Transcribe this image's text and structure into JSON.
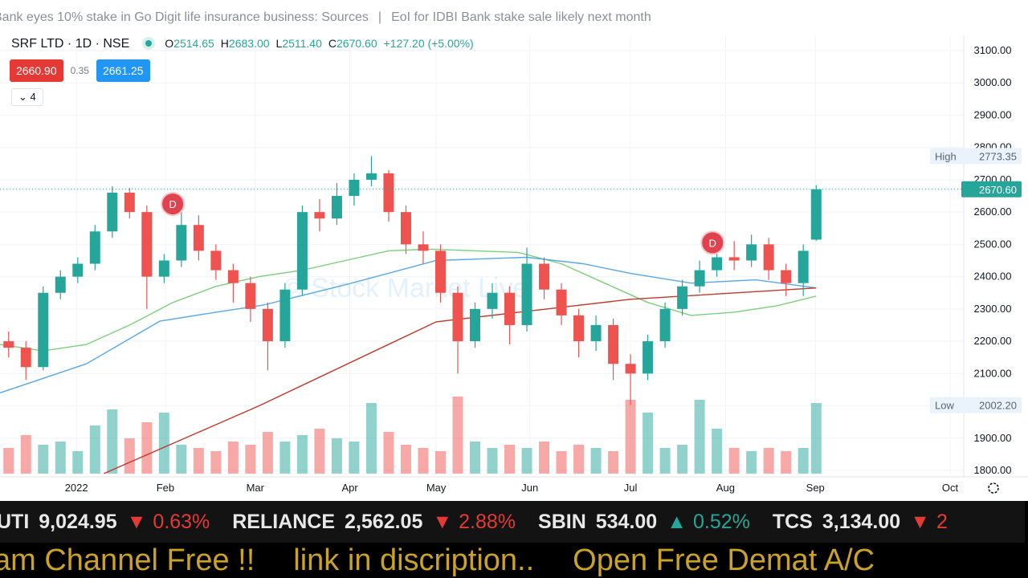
{
  "news": [
    "Bank eyes 10% stake in Go Digit life insurance business: Sources",
    "|",
    "EoI for IDBI Bank stake sale likely next month"
  ],
  "header": {
    "symbol": "SRF LTD · 1D · NSE",
    "ohlc": [
      [
        "O",
        "2514.65"
      ],
      [
        "H",
        "2683.00"
      ],
      [
        "L",
        "2511.40"
      ],
      [
        "C",
        "2670.60"
      ]
    ],
    "change": "+127.20 (+5.00%)",
    "bid": "2660.90",
    "spread": "0.35",
    "ask": "2661.25",
    "indicators": "4"
  },
  "chart_data": {
    "type": "candlestick",
    "watermark": "© Stock Market Live",
    "xlim": [
      0,
      220
    ],
    "xticks": [
      {
        "value": 17.7,
        "label": "2022"
      },
      {
        "value": 38.3,
        "label": "Feb"
      },
      {
        "value": 59.1,
        "label": "Mar"
      },
      {
        "value": 81,
        "label": "Apr"
      },
      {
        "value": 101,
        "label": "May"
      },
      {
        "value": 122.7,
        "label": "Jun"
      },
      {
        "value": 146,
        "label": "Jul"
      },
      {
        "value": 168,
        "label": "Aug"
      },
      {
        "value": 188.8,
        "label": "Sep"
      },
      {
        "value": 220,
        "label": "Oct"
      }
    ],
    "ylim": [
      1800,
      3100
    ],
    "yticks": [
      {
        "value": 1800,
        "label": "1800.00"
      },
      {
        "value": 1900,
        "label": "1900.00"
      },
      {
        "value": 2000,
        "label": "2000.00"
      },
      {
        "value": 2100,
        "label": "2100.00"
      },
      {
        "value": 2200,
        "label": "2200.00"
      },
      {
        "value": 2300,
        "label": "2300.00"
      },
      {
        "value": 2400,
        "label": "2400.00"
      },
      {
        "value": 2500,
        "label": "2500.00"
      },
      {
        "value": 2600,
        "label": "2600.00"
      },
      {
        "value": 2700,
        "label": "2700.00"
      },
      {
        "value": 2800,
        "label": "2800.00"
      },
      {
        "value": 2900,
        "label": "2900.00"
      },
      {
        "value": 3000,
        "label": "3000.00"
      },
      {
        "value": 3100,
        "label": "3100.00"
      }
    ],
    "up_color": "#26a69a",
    "down_color": "#ef5350",
    "candles": {
      "x": [
        2,
        6,
        10,
        14,
        18,
        22,
        26,
        30,
        34,
        38,
        42,
        46,
        50,
        54,
        58,
        62,
        66,
        70,
        74,
        78,
        82,
        86,
        90,
        94,
        98,
        102,
        106,
        110,
        114,
        118,
        122,
        126,
        130,
        134,
        138,
        142,
        146,
        150,
        154,
        158,
        162,
        166,
        170,
        174,
        178,
        182,
        186,
        189
      ],
      "open": [
        2200,
        2180,
        2120,
        2350,
        2400,
        2440,
        2540,
        2660,
        2600,
        2400,
        2450,
        2560,
        2480,
        2420,
        2380,
        2300,
        2200,
        2360,
        2600,
        2580,
        2650,
        2700,
        2720,
        2600,
        2500,
        2480,
        2350,
        2200,
        2300,
        2350,
        2250,
        2440,
        2360,
        2280,
        2200,
        2250,
        2130,
        2100,
        2200,
        2300,
        2370,
        2420,
        2460,
        2450,
        2500,
        2420,
        2380,
        2514.65
      ],
      "high": [
        2230,
        2200,
        2370,
        2420,
        2460,
        2560,
        2680,
        2675,
        2620,
        2470,
        2610,
        2590,
        2500,
        2440,
        2400,
        2320,
        2380,
        2620,
        2640,
        2690,
        2720,
        2773.35,
        2730,
        2620,
        2540,
        2500,
        2370,
        2320,
        2380,
        2370,
        2490,
        2460,
        2380,
        2300,
        2280,
        2270,
        2160,
        2220,
        2320,
        2390,
        2450,
        2490,
        2510,
        2530,
        2520,
        2440,
        2500,
        2683
      ],
      "low": [
        2150,
        2080,
        2110,
        2330,
        2380,
        2420,
        2520,
        2580,
        2300,
        2380,
        2430,
        2450,
        2390,
        2320,
        2260,
        2110,
        2180,
        2340,
        2540,
        2560,
        2620,
        2680,
        2570,
        2470,
        2440,
        2320,
        2100,
        2180,
        2270,
        2190,
        2230,
        2330,
        2250,
        2150,
        2170,
        2080,
        2002.2,
        2080,
        2180,
        2280,
        2350,
        2400,
        2420,
        2430,
        2390,
        2340,
        2340,
        2511.4
      ],
      "close": [
        2180,
        2120,
        2350,
        2400,
        2440,
        2540,
        2660,
        2600,
        2400,
        2450,
        2560,
        2480,
        2420,
        2380,
        2300,
        2200,
        2360,
        2600,
        2580,
        2650,
        2700,
        2720,
        2600,
        2500,
        2480,
        2350,
        2200,
        2300,
        2350,
        2250,
        2440,
        2360,
        2280,
        2200,
        2250,
        2130,
        2100,
        2200,
        2300,
        2370,
        2420,
        2460,
        2450,
        2500,
        2420,
        2380,
        2480,
        2670.6
      ],
      "volume": [
        0.8,
        1.2,
        0.9,
        1.0,
        0.7,
        1.5,
        2.0,
        1.1,
        1.6,
        1.9,
        0.9,
        0.8,
        0.7,
        1.0,
        0.9,
        1.3,
        1.0,
        1.2,
        1.4,
        1.1,
        1.0,
        2.2,
        1.3,
        0.9,
        0.8,
        0.7,
        2.4,
        1.0,
        0.8,
        0.9,
        0.8,
        1.0,
        0.7,
        0.9,
        0.8,
        0.7,
        2.3,
        1.9,
        0.8,
        0.9,
        2.3,
        1.4,
        0.8,
        0.7,
        0.8,
        0.7,
        0.8,
        2.2
      ]
    },
    "volume_lim": [
      0,
      3
    ],
    "moving_averages": [
      {
        "color": "#7ccf7c",
        "x": [
          0,
          10,
          20,
          30,
          40,
          50,
          60,
          70,
          80,
          90,
          100,
          110,
          120,
          130,
          140,
          150,
          160,
          170,
          180,
          189
        ],
        "values": [
          2190,
          2170,
          2190,
          2250,
          2320,
          2370,
          2400,
          2420,
          2450,
          2480,
          2485,
          2480,
          2475,
          2440,
          2380,
          2320,
          2280,
          2290,
          2310,
          2340
        ]
      },
      {
        "color": "#5aa9e6",
        "x": [
          0,
          20,
          37,
          50,
          61,
          80,
          101,
          122,
          135,
          146,
          160,
          175,
          189
        ],
        "values": [
          2040,
          2130,
          2262,
          2290,
          2312,
          2375,
          2450,
          2460,
          2440,
          2410,
          2380,
          2390,
          2365
        ]
      },
      {
        "color": "#c0392b",
        "x": [
          24,
          60,
          101,
          146,
          189
        ],
        "values": [
          1790,
          2000,
          2260,
          2330,
          2365
        ]
      }
    ],
    "dividends": [
      {
        "label": "D",
        "x": 40,
        "y": 2625
      },
      {
        "label": "D",
        "x": 165,
        "y": 2505
      }
    ],
    "price_labels": [
      {
        "name": "High",
        "value": 2773.35,
        "label": "2773.35",
        "color": "#eaf3fb",
        "text": "#5b6475"
      },
      {
        "name": "Low",
        "value": 2002.2,
        "label": "2002.20",
        "color": "#eaf3fb",
        "text": "#5b6475"
      },
      {
        "value": 2670.6,
        "label": "2670.60",
        "color": "#26a69a",
        "text": "#ffffff"
      }
    ]
  },
  "bottom_ticker": [
    [
      "UTI",
      "9,024.95",
      "▼",
      "0.63%"
    ],
    [
      "RELIANCE",
      "2,562.05",
      "▼",
      "2.88%"
    ],
    [
      "SBIN",
      "534.00",
      "▲",
      "0.52%"
    ],
    [
      "TCS",
      "3,134.00",
      "▼",
      "2"
    ]
  ],
  "marquee": [
    "am Channel Free !!",
    "link in discription..",
    "Open Free Demat A/C"
  ]
}
